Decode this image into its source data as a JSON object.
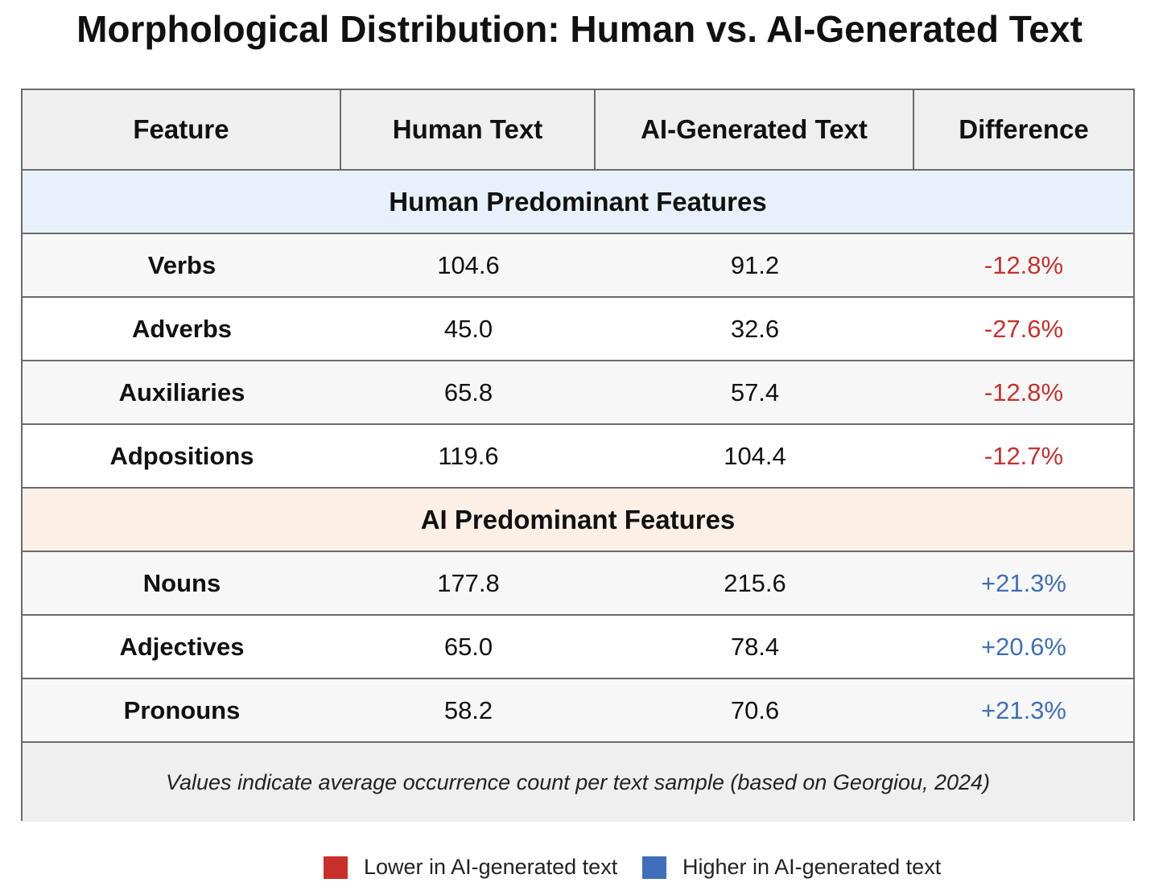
{
  "chart_data": {
    "type": "table",
    "title": "Morphological Distribution: Human vs. AI-Generated Text",
    "columns": [
      "Feature",
      "Human Text",
      "AI-Generated Text",
      "Difference"
    ],
    "sections": [
      {
        "label": "Human Predominant Features",
        "color": "#e8f1fb",
        "rows": [
          {
            "feature": "Verbs",
            "human": "104.6",
            "ai": "91.2",
            "difference": "-12.8%"
          },
          {
            "feature": "Adverbs",
            "human": "45.0",
            "ai": "32.6",
            "difference": "-27.6%"
          },
          {
            "feature": "Auxiliaries",
            "human": "65.8",
            "ai": "57.4",
            "difference": "-12.8%"
          },
          {
            "feature": "Adpositions",
            "human": "119.6",
            "ai": "104.4",
            "difference": "-12.7%"
          }
        ]
      },
      {
        "label": "AI Predominant Features",
        "color": "#fcefe6",
        "rows": [
          {
            "feature": "Nouns",
            "human": "177.8",
            "ai": "215.6",
            "difference": "+21.3%"
          },
          {
            "feature": "Adjectives",
            "human": "65.0",
            "ai": "78.4",
            "difference": "+20.6%"
          },
          {
            "feature": "Pronouns",
            "human": "58.2",
            "ai": "70.6",
            "difference": "+21.3%"
          }
        ]
      }
    ],
    "note": "Values indicate average occurrence count per text sample (based on Georgiou, 2024)",
    "legend": [
      {
        "label": "Lower in AI-generated text",
        "color": "#c9302c"
      },
      {
        "label": "Higher in AI-generated text",
        "color": "#3f6fba"
      }
    ]
  }
}
